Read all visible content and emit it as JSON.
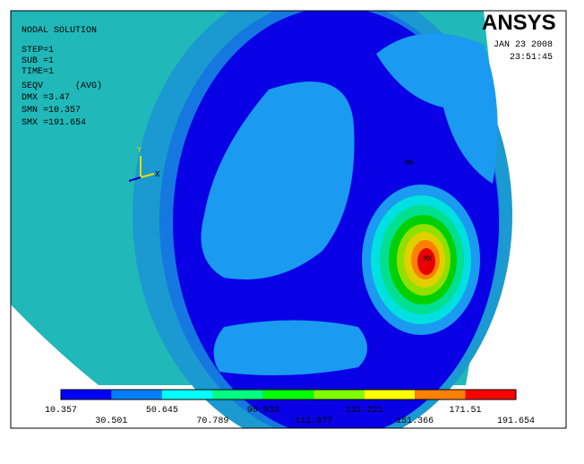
{
  "header": {
    "title": "NODAL SOLUTION",
    "step": "STEP=1",
    "sub": "SUB =1",
    "time": "TIME=1",
    "quantity": "SEQV      (AVG)",
    "dmx": "DMX =3.47",
    "smn": "SMN =10.357",
    "smx": "SMX =191.654"
  },
  "brand": {
    "logo": "ANSYS",
    "date": "JAN 23 2008",
    "time": "23:51:45"
  },
  "markers": {
    "min": "MN",
    "max": "MX"
  },
  "triad": {
    "y": "Y",
    "x": "X"
  },
  "legend": {
    "colors": [
      "#0000ff",
      "#0080ff",
      "#00ffff",
      "#00ff80",
      "#00ff00",
      "#80ff00",
      "#ffff00",
      "#ff8000",
      "#ff0000"
    ],
    "labels": [
      "10.357",
      "30.501",
      "50.645",
      "70.789",
      "90.933",
      "111.077",
      "131.221",
      "151.366",
      "171.51",
      "191.654"
    ]
  }
}
